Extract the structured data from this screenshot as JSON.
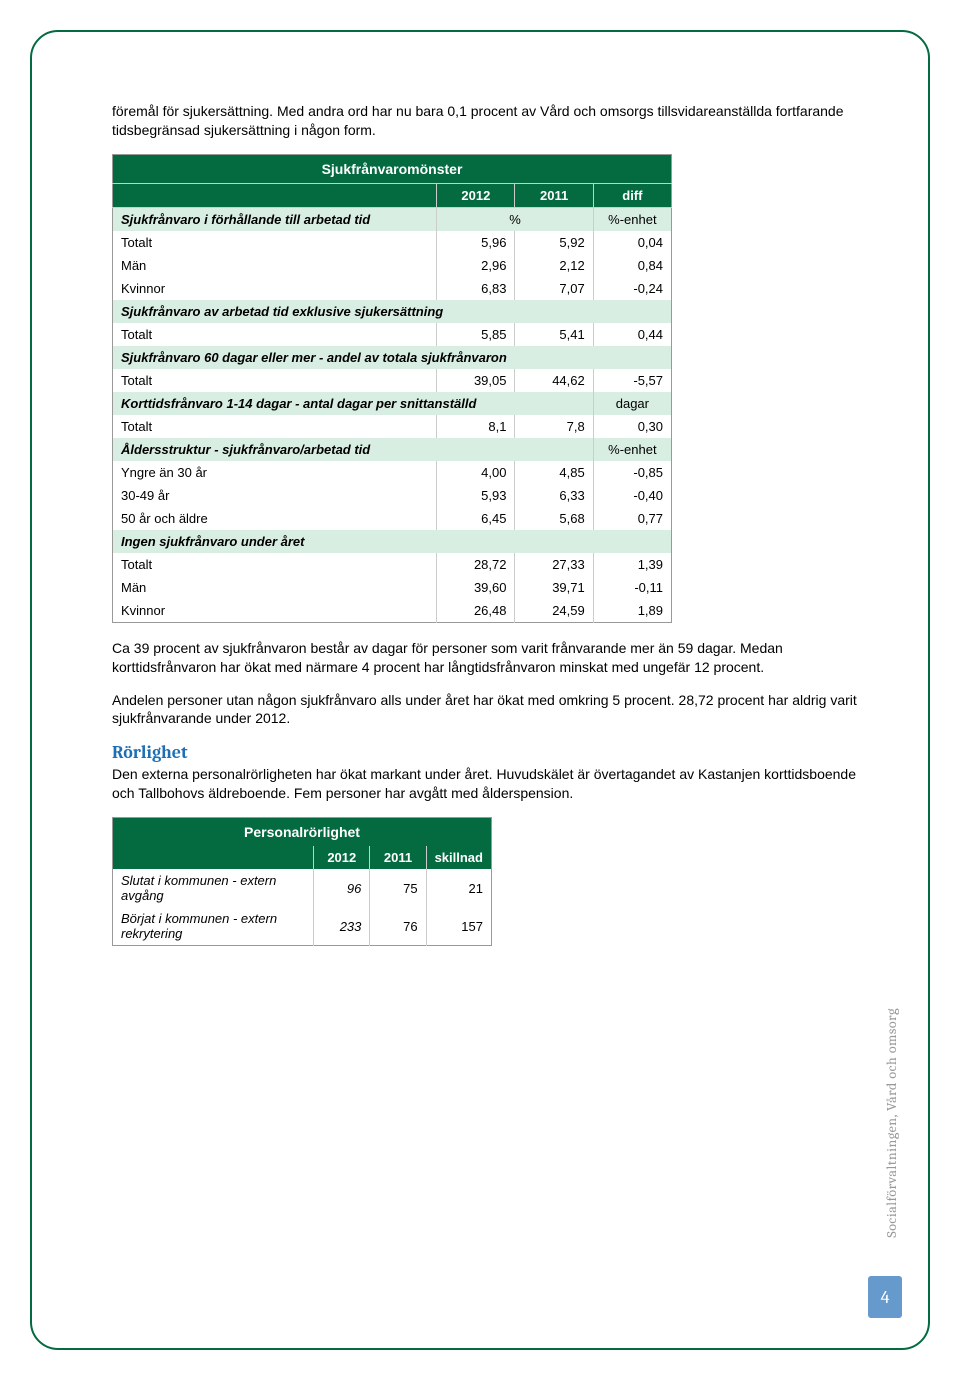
{
  "intro": "föremål för sjukersättning. Med andra ord har nu bara 0,1 procent av Vård och omsorgs tillsvidareanställda fortfarande tidsbegränsad sjukersättning i någon form.",
  "table1": {
    "title": "Sjukfrånvaromönster",
    "col_2012": "2012",
    "col_2011": "2011",
    "col_diff": "diff",
    "sections": {
      "s1": {
        "label": "Sjukfrånvaro i förhållande till arbetad tid",
        "unit1": "%",
        "unit2": "%-enhet"
      },
      "s2": {
        "label": "Sjukfrånvaro av arbetad tid exklusive sjukersättning"
      },
      "s3": {
        "label": "Sjukfrånvaro 60 dagar eller mer - andel av totala sjukfrånvaron"
      },
      "s4": {
        "label": "Korttidsfrånvaro 1-14 dagar - antal dagar per snittanställd",
        "unit2": "dagar"
      },
      "s5": {
        "label": "Åldersstruktur - sjukfrånvaro/arbetad tid",
        "unit2": "%-enhet"
      },
      "s6": {
        "label": "Ingen sjukfrånvaro under året"
      }
    },
    "rows": {
      "s1_totalt": {
        "label": "Totalt",
        "v1": "5,96",
        "v2": "5,92",
        "d": "0,04"
      },
      "s1_man": {
        "label": "Män",
        "v1": "2,96",
        "v2": "2,12",
        "d": "0,84"
      },
      "s1_kvinnor": {
        "label": "Kvinnor",
        "v1": "6,83",
        "v2": "7,07",
        "d": "-0,24"
      },
      "s2_totalt": {
        "label": "Totalt",
        "v1": "5,85",
        "v2": "5,41",
        "d": "0,44"
      },
      "s3_totalt": {
        "label": "Totalt",
        "v1": "39,05",
        "v2": "44,62",
        "d": "-5,57"
      },
      "s4_totalt": {
        "label": "Totalt",
        "v1": "8,1",
        "v2": "7,8",
        "d": "0,30"
      },
      "s5_yngre": {
        "label": "Yngre än 30 år",
        "v1": "4,00",
        "v2": "4,85",
        "d": "-0,85"
      },
      "s5_3049": {
        "label": "30-49 år",
        "v1": "5,93",
        "v2": "6,33",
        "d": "-0,40"
      },
      "s5_50": {
        "label": "50 år och äldre",
        "v1": "6,45",
        "v2": "5,68",
        "d": "0,77"
      },
      "s6_totalt": {
        "label": "Totalt",
        "v1": "28,72",
        "v2": "27,33",
        "d": "1,39"
      },
      "s6_man": {
        "label": "Män",
        "v1": "39,60",
        "v2": "39,71",
        "d": "-0,11"
      },
      "s6_kvinnor": {
        "label": "Kvinnor",
        "v1": "26,48",
        "v2": "24,59",
        "d": "1,89"
      }
    }
  },
  "para2": "Ca 39 procent av sjukfrånvaron består av dagar för personer som varit frånvarande mer än 59 dagar. Medan korttidsfrånvaron har ökat med närmare 4 procent har långtidsfrånvaron minskat med ungefär 12 procent.",
  "para3": "Andelen personer utan någon sjukfrånvaro alls under året har ökat med omkring 5 procent. 28,72 procent har aldrig varit sjukfrånvarande under 2012.",
  "section_title": "Rörlighet",
  "para4": "Den externa personalrörligheten har ökat markant under året. Huvudskälet är övertagandet av Kastanjen korttidsboende och Tallbohovs äldreboende. Fem personer har avgått med ålderspension.",
  "table2": {
    "title": "Personalrörlighet",
    "col_2012": "2012",
    "col_2011": "2011",
    "col_diff": "skillnad",
    "rows": {
      "slutat": {
        "label": "Slutat i kommunen - extern avgång",
        "v1": "96",
        "v2": "75",
        "d": "21"
      },
      "borjat": {
        "label": "Börjat i kommunen - extern rekrytering",
        "v1": "233",
        "v2": "76",
        "d": "157"
      }
    }
  },
  "side_label": "Socialförvaltningen, Vård och omsorg",
  "page_number": "4"
}
